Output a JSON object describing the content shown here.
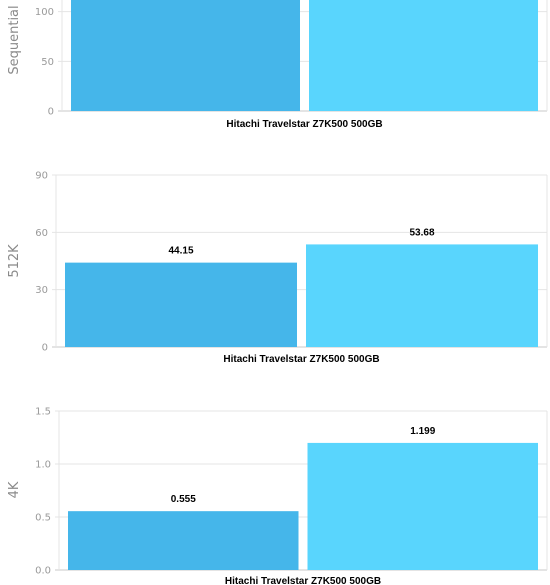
{
  "chart_data": [
    {
      "type": "bar",
      "ylabel": "Sequential",
      "xlabel": "Hitachi Travelstar Z7K500 500GB",
      "ylim": [
        0,
        150
      ],
      "yticks": [
        "0",
        "50",
        "100"
      ],
      "series": [
        {
          "values": [
            null
          ],
          "color": "#45b6ea"
        },
        {
          "values": [
            null
          ],
          "color": "#59d5fd"
        }
      ],
      "grid": true
    },
    {
      "type": "bar",
      "ylabel": "512K",
      "xlabel": "Hitachi Travelstar Z7K500 500GB",
      "ylim": [
        0,
        90
      ],
      "yticks": [
        "0",
        "30",
        "60",
        "90"
      ],
      "series": [
        {
          "values": [
            44.15
          ],
          "label": "44.15",
          "color": "#45b6ea"
        },
        {
          "values": [
            53.68
          ],
          "label": "53.68",
          "color": "#59d5fd"
        }
      ],
      "grid": true
    },
    {
      "type": "bar",
      "ylabel": "4K",
      "xlabel": "Hitachi Travelstar Z7K500 500GB",
      "ylim": [
        0,
        1.5
      ],
      "yticks": [
        "0.0",
        "0.5",
        "1.0",
        "1.5"
      ],
      "series": [
        {
          "values": [
            0.555
          ],
          "label": "0.555",
          "color": "#45b6ea"
        },
        {
          "values": [
            1.199
          ],
          "label": "1.199",
          "color": "#59d5fd"
        }
      ],
      "grid": true
    }
  ]
}
